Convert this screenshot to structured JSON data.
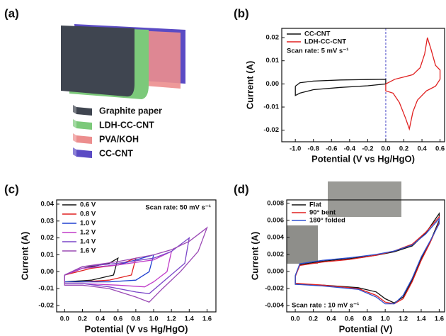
{
  "panel_labels": [
    "(a)",
    "(b)",
    "(c)",
    "(d)"
  ],
  "diagram": {
    "legend": [
      "Graphite paper",
      "LDH-CC-CNT",
      "PVA/KOH",
      "CC-CNT"
    ],
    "colors": [
      "#3f4550",
      "#7cc97a",
      "#ec8e8e",
      "#5b4bc4"
    ]
  },
  "chart_data": [
    {
      "type": "line",
      "annotation": "Scan rate: 5 mV s⁻¹",
      "xlabel": "Potential (V vs Hg/HgO)",
      "ylabel": "Current (A)",
      "xlim": [
        -1.15,
        0.65
      ],
      "ylim": [
        -0.025,
        0.024
      ],
      "xticks": [
        {
          "value": -1.0,
          "label": "-1.0"
        },
        -0.8,
        -0.6,
        -0.4,
        -0.2,
        {
          "value": 0,
          "label": "0.0"
        },
        0.2,
        0.4,
        0.6
      ],
      "yticks": [
        -0.02,
        -0.01,
        {
          "value": 0,
          "label": "0.00"
        },
        0.01,
        0.02
      ],
      "legend": "upper left",
      "reference_line": {
        "x": 0,
        "color": "#4a4ac8"
      },
      "series": [
        {
          "name": "CC-CNT",
          "color": "#111111",
          "x": [
            -1.0,
            -0.95,
            -0.8,
            -0.5,
            -0.2,
            0.0,
            0.0,
            -0.2,
            -0.5,
            -0.8,
            -0.95,
            -1.0,
            -1.0
          ],
          "values": [
            -0.001,
            0.0005,
            0.0012,
            0.0017,
            0.0019,
            0.002,
            0.0,
            -0.0008,
            -0.0015,
            -0.0025,
            -0.004,
            -0.005,
            -0.001
          ]
        },
        {
          "name": "LDH-CC-CNT",
          "color": "#e02020",
          "x": [
            0.0,
            0.1,
            0.2,
            0.3,
            0.38,
            0.43,
            0.46,
            0.5,
            0.55,
            0.6,
            0.6,
            0.55,
            0.45,
            0.35,
            0.3,
            0.26,
            0.22,
            0.15,
            0.08,
            0.0,
            0.0
          ],
          "values": [
            0.0,
            0.002,
            0.003,
            0.004,
            0.007,
            0.013,
            0.02,
            0.015,
            0.008,
            0.006,
            0.002,
            -0.001,
            -0.003,
            -0.007,
            -0.012,
            -0.0195,
            -0.015,
            -0.008,
            -0.004,
            -0.003,
            0.0
          ]
        }
      ]
    },
    {
      "type": "line",
      "annotation": "Scan rate: 50 mV s⁻¹",
      "xlabel": "Potential (V vs Hg/HgO)",
      "ylabel": "Current (A)",
      "xlim": [
        -0.09,
        1.7
      ],
      "ylim": [
        -0.0238,
        0.0425
      ],
      "xticks": [
        {
          "value": 0,
          "label": "0.0"
        },
        0.2,
        0.4,
        0.6,
        0.8,
        {
          "value": 1,
          "label": "1.0"
        },
        1.2,
        1.4,
        1.6
      ],
      "yticks": [
        -0.02,
        -0.01,
        {
          "value": 0,
          "label": "0.00"
        },
        0.01,
        0.02,
        0.03,
        0.04
      ],
      "legend": "upper left",
      "series": [
        {
          "name": "0.6 V",
          "color": "#111111",
          "x": [
            0,
            0.2,
            0.5,
            0.6,
            0.55,
            0.3,
            0,
            0
          ],
          "values": [
            -0.002,
            0.002,
            0.005,
            0.008,
            -0.002,
            -0.005,
            -0.006,
            -0.002
          ]
        },
        {
          "name": "0.8 V",
          "color": "#e02020",
          "x": [
            0,
            0.3,
            0.6,
            0.8,
            0.75,
            0.5,
            0.2,
            0,
            0
          ],
          "values": [
            -0.002,
            0.002,
            0.004,
            0.008,
            -0.002,
            -0.005,
            -0.006,
            -0.006,
            -0.002
          ]
        },
        {
          "name": "1.0 V",
          "color": "#2040d0",
          "x": [
            0,
            0.2,
            0.6,
            1.0,
            0.95,
            0.8,
            0.5,
            0.2,
            0,
            0
          ],
          "values": [
            -0.002,
            0.002,
            0.004,
            0.01,
            0.0,
            -0.005,
            -0.006,
            -0.006,
            -0.006,
            -0.002
          ]
        },
        {
          "name": "1.2 V",
          "color": "#c03cc8",
          "x": [
            0,
            0.2,
            0.6,
            1.0,
            1.2,
            1.15,
            1.0,
            0.9,
            0.6,
            0.2,
            0,
            0
          ],
          "values": [
            -0.002,
            0.002,
            0.004,
            0.007,
            0.012,
            0.0,
            -0.006,
            -0.009,
            -0.008,
            -0.007,
            -0.007,
            -0.002
          ]
        },
        {
          "name": "1.4 V",
          "color": "#7a46c8",
          "x": [
            0,
            0.2,
            0.6,
            1.0,
            1.2,
            1.4,
            1.35,
            1.15,
            0.95,
            0.8,
            0.5,
            0.2,
            0,
            0
          ],
          "values": [
            -0.002,
            0.003,
            0.005,
            0.008,
            0.012,
            0.02,
            0.005,
            -0.004,
            -0.013,
            -0.012,
            -0.009,
            -0.007,
            -0.007,
            -0.002
          ]
        },
        {
          "name": "1.6 V",
          "color": "#9a48b4",
          "x": [
            0,
            0.2,
            0.6,
            1.0,
            1.2,
            1.4,
            1.6,
            1.5,
            1.3,
            1.1,
            0.95,
            0.8,
            0.5,
            0.2,
            0,
            0
          ],
          "values": [
            -0.002,
            0.003,
            0.006,
            0.01,
            0.013,
            0.018,
            0.026,
            0.012,
            0.0,
            -0.01,
            -0.018,
            -0.015,
            -0.01,
            -0.008,
            -0.008,
            -0.002
          ]
        }
      ]
    },
    {
      "type": "line",
      "annotation": "Scan rate : 10 mV s⁻¹",
      "xlabel": "Potential (V)",
      "ylabel": "Current (A)",
      "xlim": [
        -0.095,
        1.66
      ],
      "ylim": [
        -0.00475,
        0.0084
      ],
      "xticks": [
        {
          "value": 0,
          "label": "0.0"
        },
        0.2,
        0.4,
        0.6,
        0.8,
        {
          "value": 1,
          "label": "1.0"
        },
        1.2,
        1.4,
        1.6
      ],
      "yticks": [
        -0.004,
        -0.002,
        {
          "value": 0,
          "label": "0.000"
        },
        0.002,
        0.004,
        0.006,
        0.008
      ],
      "legend": "upper left",
      "series": [
        {
          "name": "Flat",
          "color": "#111111",
          "x": [
            0,
            0.05,
            0.3,
            0.6,
            0.9,
            1.1,
            1.3,
            1.45,
            1.6,
            1.6,
            1.5,
            1.4,
            1.3,
            1.2,
            1.1,
            1.0,
            0.9,
            0.7,
            0.3,
            0,
            0
          ],
          "values": [
            -0.0005,
            0.0008,
            0.0012,
            0.0015,
            0.0019,
            0.0023,
            0.003,
            0.0045,
            0.0068,
            0.006,
            0.0035,
            0.0015,
            -0.001,
            -0.003,
            -0.0037,
            -0.0032,
            -0.0024,
            -0.0019,
            -0.0016,
            -0.0015,
            -0.0005
          ]
        },
        {
          "name": "90° bent",
          "color": "#e02020",
          "x": [
            0,
            0.05,
            0.3,
            0.6,
            0.9,
            1.1,
            1.3,
            1.45,
            1.6,
            1.6,
            1.5,
            1.4,
            1.3,
            1.2,
            1.1,
            1.0,
            0.9,
            0.7,
            0.3,
            0,
            0
          ],
          "values": [
            -0.0006,
            0.0007,
            0.0011,
            0.0014,
            0.0019,
            0.0024,
            0.0032,
            0.0046,
            0.0064,
            0.0058,
            0.0034,
            0.0013,
            -0.0012,
            -0.0032,
            -0.0038,
            -0.0036,
            -0.0028,
            -0.002,
            -0.0016,
            -0.0014,
            -0.0006
          ]
        },
        {
          "name": "180° folded",
          "color": "#3050d0",
          "x": [
            0,
            0.05,
            0.3,
            0.6,
            0.9,
            1.1,
            1.3,
            1.45,
            1.6,
            1.6,
            1.5,
            1.4,
            1.3,
            1.2,
            1.1,
            1.0,
            0.9,
            0.7,
            0.3,
            0,
            0
          ],
          "values": [
            -0.0005,
            0.0009,
            0.0013,
            0.0016,
            0.002,
            0.0024,
            0.0031,
            0.0044,
            0.0062,
            0.0056,
            0.0036,
            0.0017,
            -0.0008,
            -0.0028,
            -0.0038,
            -0.0038,
            -0.003,
            -0.0021,
            -0.0017,
            -0.0015,
            -0.0005
          ]
        }
      ]
    }
  ]
}
